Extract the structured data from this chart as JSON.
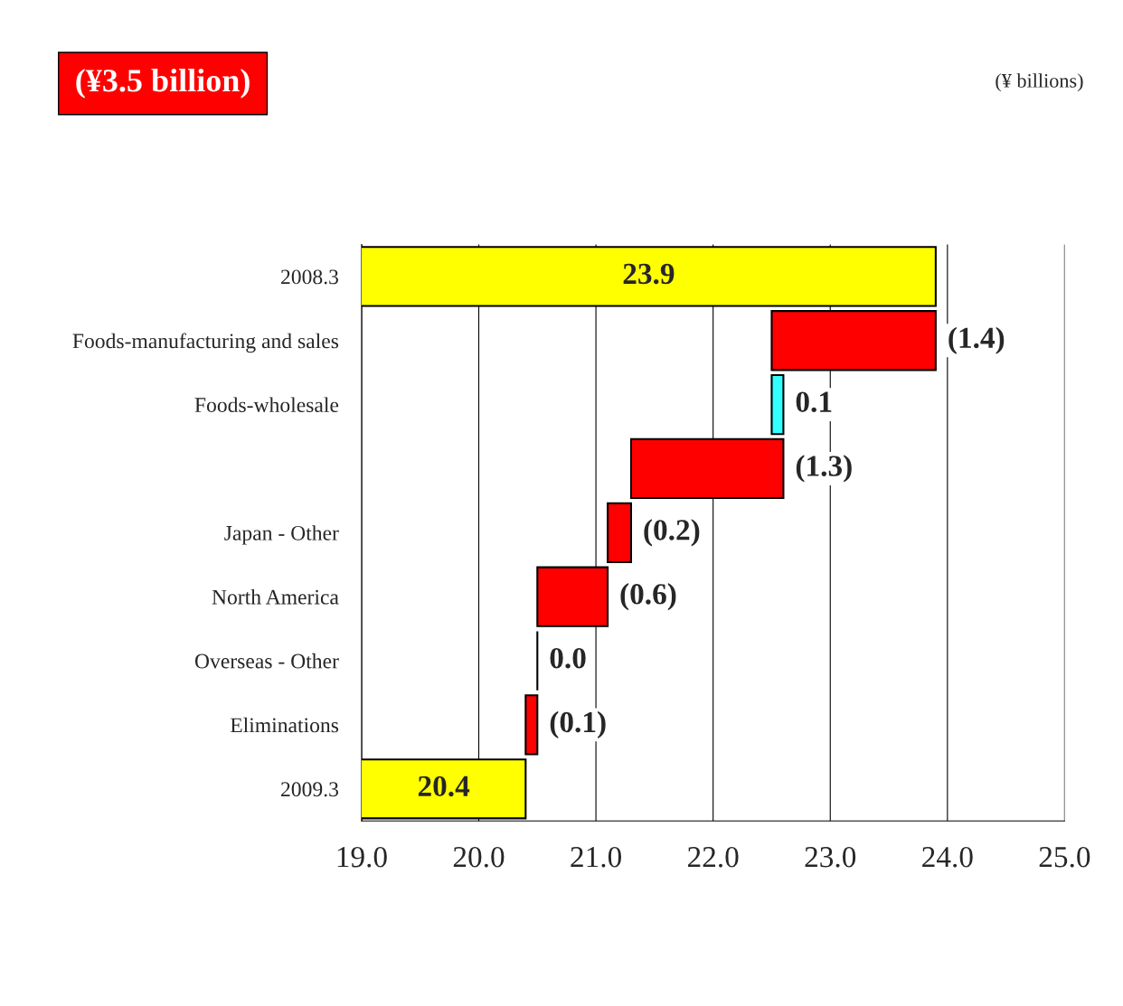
{
  "chart_data": {
    "type": "bar",
    "orientation": "horizontal",
    "title": "(¥3.5 billion)",
    "annotations": [
      "(¥ billions)"
    ],
    "categories": [
      "2008.3",
      "Foods-manufacturing and sales",
      "Foods-wholesale",
      null,
      "Japan - Other",
      "North America",
      "Overseas - Other",
      "Eliminations",
      "2009.3"
    ],
    "values": [
      23.9,
      -1.4,
      0.1,
      -1.3,
      -0.2,
      -0.6,
      0.0,
      -0.1,
      20.4
    ],
    "base": [
      0,
      23.9,
      22.5,
      22.6,
      21.3,
      21.1,
      20.5,
      20.5,
      0
    ],
    "colors": [
      "#ffff00",
      "#ff0000",
      "#33ffff",
      "#ff0000",
      "#ff0000",
      "#ff0000",
      "#000000",
      "#ff0000",
      "#ffff00"
    ],
    "value_labels": [
      "23.9",
      "(1.4)",
      "0.1",
      "(1.3)",
      "(0.2)",
      "(0.6)",
      "0.0",
      "(0.1)",
      "20.4"
    ],
    "xlim": [
      19.0,
      25.0
    ],
    "xticks": [
      {
        "value": 19,
        "label": "19.0"
      },
      {
        "value": 20,
        "label": "20.0"
      },
      {
        "value": 21,
        "label": "21.0"
      },
      {
        "value": 22,
        "label": "22.0"
      },
      {
        "value": 23,
        "label": "23.0"
      },
      {
        "value": 24,
        "label": "24.0"
      },
      {
        "value": 25,
        "label": "25.0"
      }
    ],
    "grid": "x",
    "legend": false
  }
}
